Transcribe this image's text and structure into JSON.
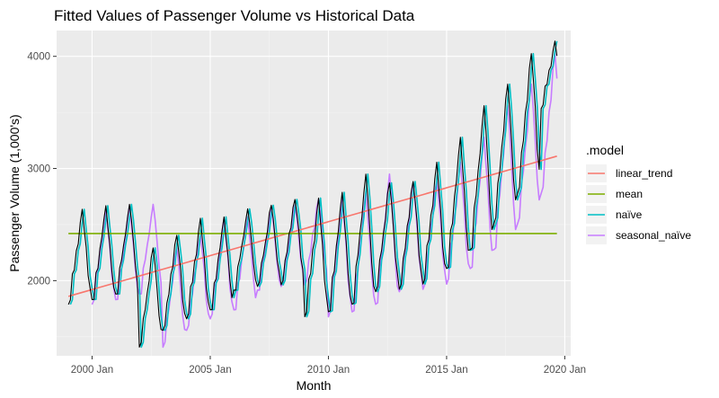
{
  "chart_data": {
    "type": "line",
    "title": "Fitted Values of Passenger Volume vs Historical Data",
    "xlabel": "Month",
    "ylabel": "Passenger Volume (1,000's)",
    "xlim": [
      1998.5,
      2020.25
    ],
    "ylim": [
      1330,
      4230
    ],
    "x_ticks": [
      {
        "value": 2000,
        "label": "2000 Jan"
      },
      {
        "value": 2005,
        "label": "2005 Jan"
      },
      {
        "value": 2010,
        "label": "2010 Jan"
      },
      {
        "value": 2015,
        "label": "2015 Jan"
      },
      {
        "value": 2020,
        "label": "2020 Jan"
      }
    ],
    "y_ticks": [
      {
        "value": 2000,
        "label": "2000"
      },
      {
        "value": 3000,
        "label": "3000"
      },
      {
        "value": 4000,
        "label": "4000"
      }
    ],
    "period_start": "1999 Jan",
    "period_end": "2019 Sep",
    "legend": {
      "title": ".model",
      "position": "right",
      "entries": [
        {
          "name": "linear_trend",
          "color": "#F8766D"
        },
        {
          "name": "mean",
          "color": "#7CAE00"
        },
        {
          "name": "naïve",
          "color": "#00BFC4"
        },
        {
          "name": "seasonal_naïve",
          "color": "#C77CFF"
        }
      ]
    },
    "historical_color": "#000000",
    "grid": true,
    "series": [
      {
        "name": "linear_trend",
        "model": "linear_trend",
        "start": 1860,
        "end": 3110
      },
      {
        "name": "mean",
        "model": "mean",
        "value": 2420
      },
      {
        "name": "naïve",
        "model": "lag1"
      },
      {
        "name": "seasonal_naïve",
        "model": "lag12"
      }
    ],
    "historical_yearly_peaks": [
      2620,
      2660,
      2680,
      2300,
      2420,
      2540,
      2560,
      2640,
      2680,
      2740,
      2720,
      2780,
      2950,
      2880,
      2900,
      3040,
      3270,
      3560,
      3760,
      4040,
      4120
    ],
    "historical_yearly_troughs": [
      1760,
      1770,
      1830,
      1360,
      1520,
      1630,
      1680,
      1870,
      1910,
      1930,
      1640,
      1650,
      1720,
      1850,
      1880,
      1930,
      2030,
      2200,
      2440,
      2720,
      3520
    ],
    "historical_monthly_shape": [
      0.05,
      0.08,
      0.33,
      0.4,
      0.58,
      0.68,
      0.88,
      1.0,
      0.82,
      0.62,
      0.35,
      0.2
    ]
  }
}
